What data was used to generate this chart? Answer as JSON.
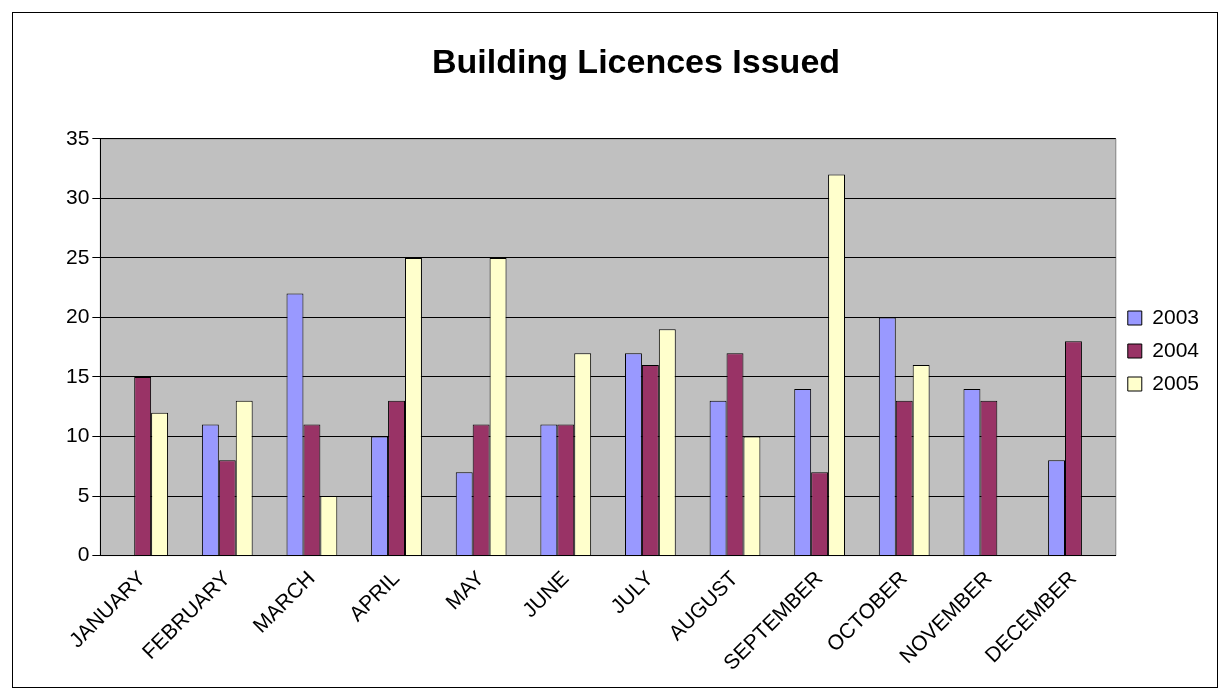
{
  "chart_data": {
    "type": "bar",
    "title": "Building Licences Issued",
    "categories": [
      "JANUARY",
      "FEBRUARY",
      "MARCH",
      "APRIL",
      "MAY",
      "JUNE",
      "JULY",
      "AUGUST",
      "SEPTEMBER",
      "OCTOBER",
      "NOVEMBER",
      "DECEMBER"
    ],
    "series": [
      {
        "name": "2003",
        "color": "#9999ff",
        "values": [
          null,
          11,
          22,
          10,
          7,
          11,
          17,
          13,
          14,
          20,
          14,
          8
        ]
      },
      {
        "name": "2004",
        "color": "#993366",
        "values": [
          15,
          8,
          11,
          13,
          11,
          11,
          16,
          17,
          7,
          13,
          13,
          18
        ]
      },
      {
        "name": "2005",
        "color": "#ffffcc",
        "values": [
          12,
          13,
          5,
          25,
          25,
          17,
          19,
          10,
          32,
          16,
          null,
          null
        ]
      }
    ],
    "ylim": [
      0,
      35
    ],
    "yticks": [
      0,
      5,
      10,
      15,
      20,
      25,
      30,
      35
    ],
    "grid": "y",
    "legend": "right"
  }
}
